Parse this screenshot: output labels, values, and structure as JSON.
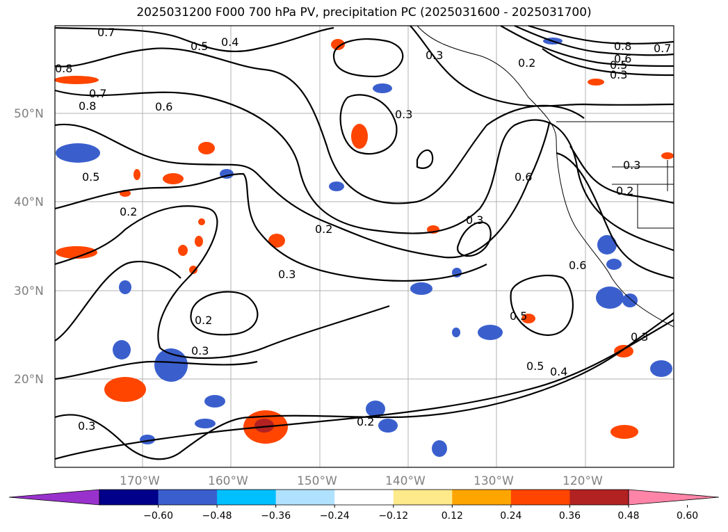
{
  "title": "2025031200 F000 700 hPa PV, precipitation PC (2025031600 - 2025031700)",
  "lat_labels": [
    "50°N",
    "40°N",
    "30°N",
    "20°N"
  ],
  "lon_labels": [
    "170°W",
    "160°W",
    "150°W",
    "140°W",
    "130°W",
    "120°W"
  ],
  "contour_labels": [
    "0.7",
    "0.5",
    "0.4",
    "0.3",
    "0.2",
    "0.8",
    "0.6",
    "0.5",
    "0.7",
    "0.3",
    "0.8",
    "0.7",
    "0.8",
    "0.6",
    "0.3",
    "0.5",
    "0.2",
    "0.2",
    "0.3",
    "0.3",
    "0.6",
    "0.3",
    "0.2",
    "0.6",
    "0.2",
    "0.3",
    "0.3",
    "0.5",
    "0.5",
    "0.4",
    "0.2",
    "0.3"
  ],
  "colorbar": {
    "ticks": [
      "−0.60",
      "−0.48",
      "−0.36",
      "−0.24",
      "−0.12",
      "0.12",
      "0.24",
      "0.36",
      "0.48",
      "0.60"
    ],
    "colors": [
      "#9932cc",
      "#00008b",
      "#3a5fcd",
      "#00bfff",
      "#b0e2ff",
      "#ffffff",
      "#fee98b",
      "#ffa500",
      "#ff4500",
      "#b22222",
      "#ff85a8"
    ]
  }
}
